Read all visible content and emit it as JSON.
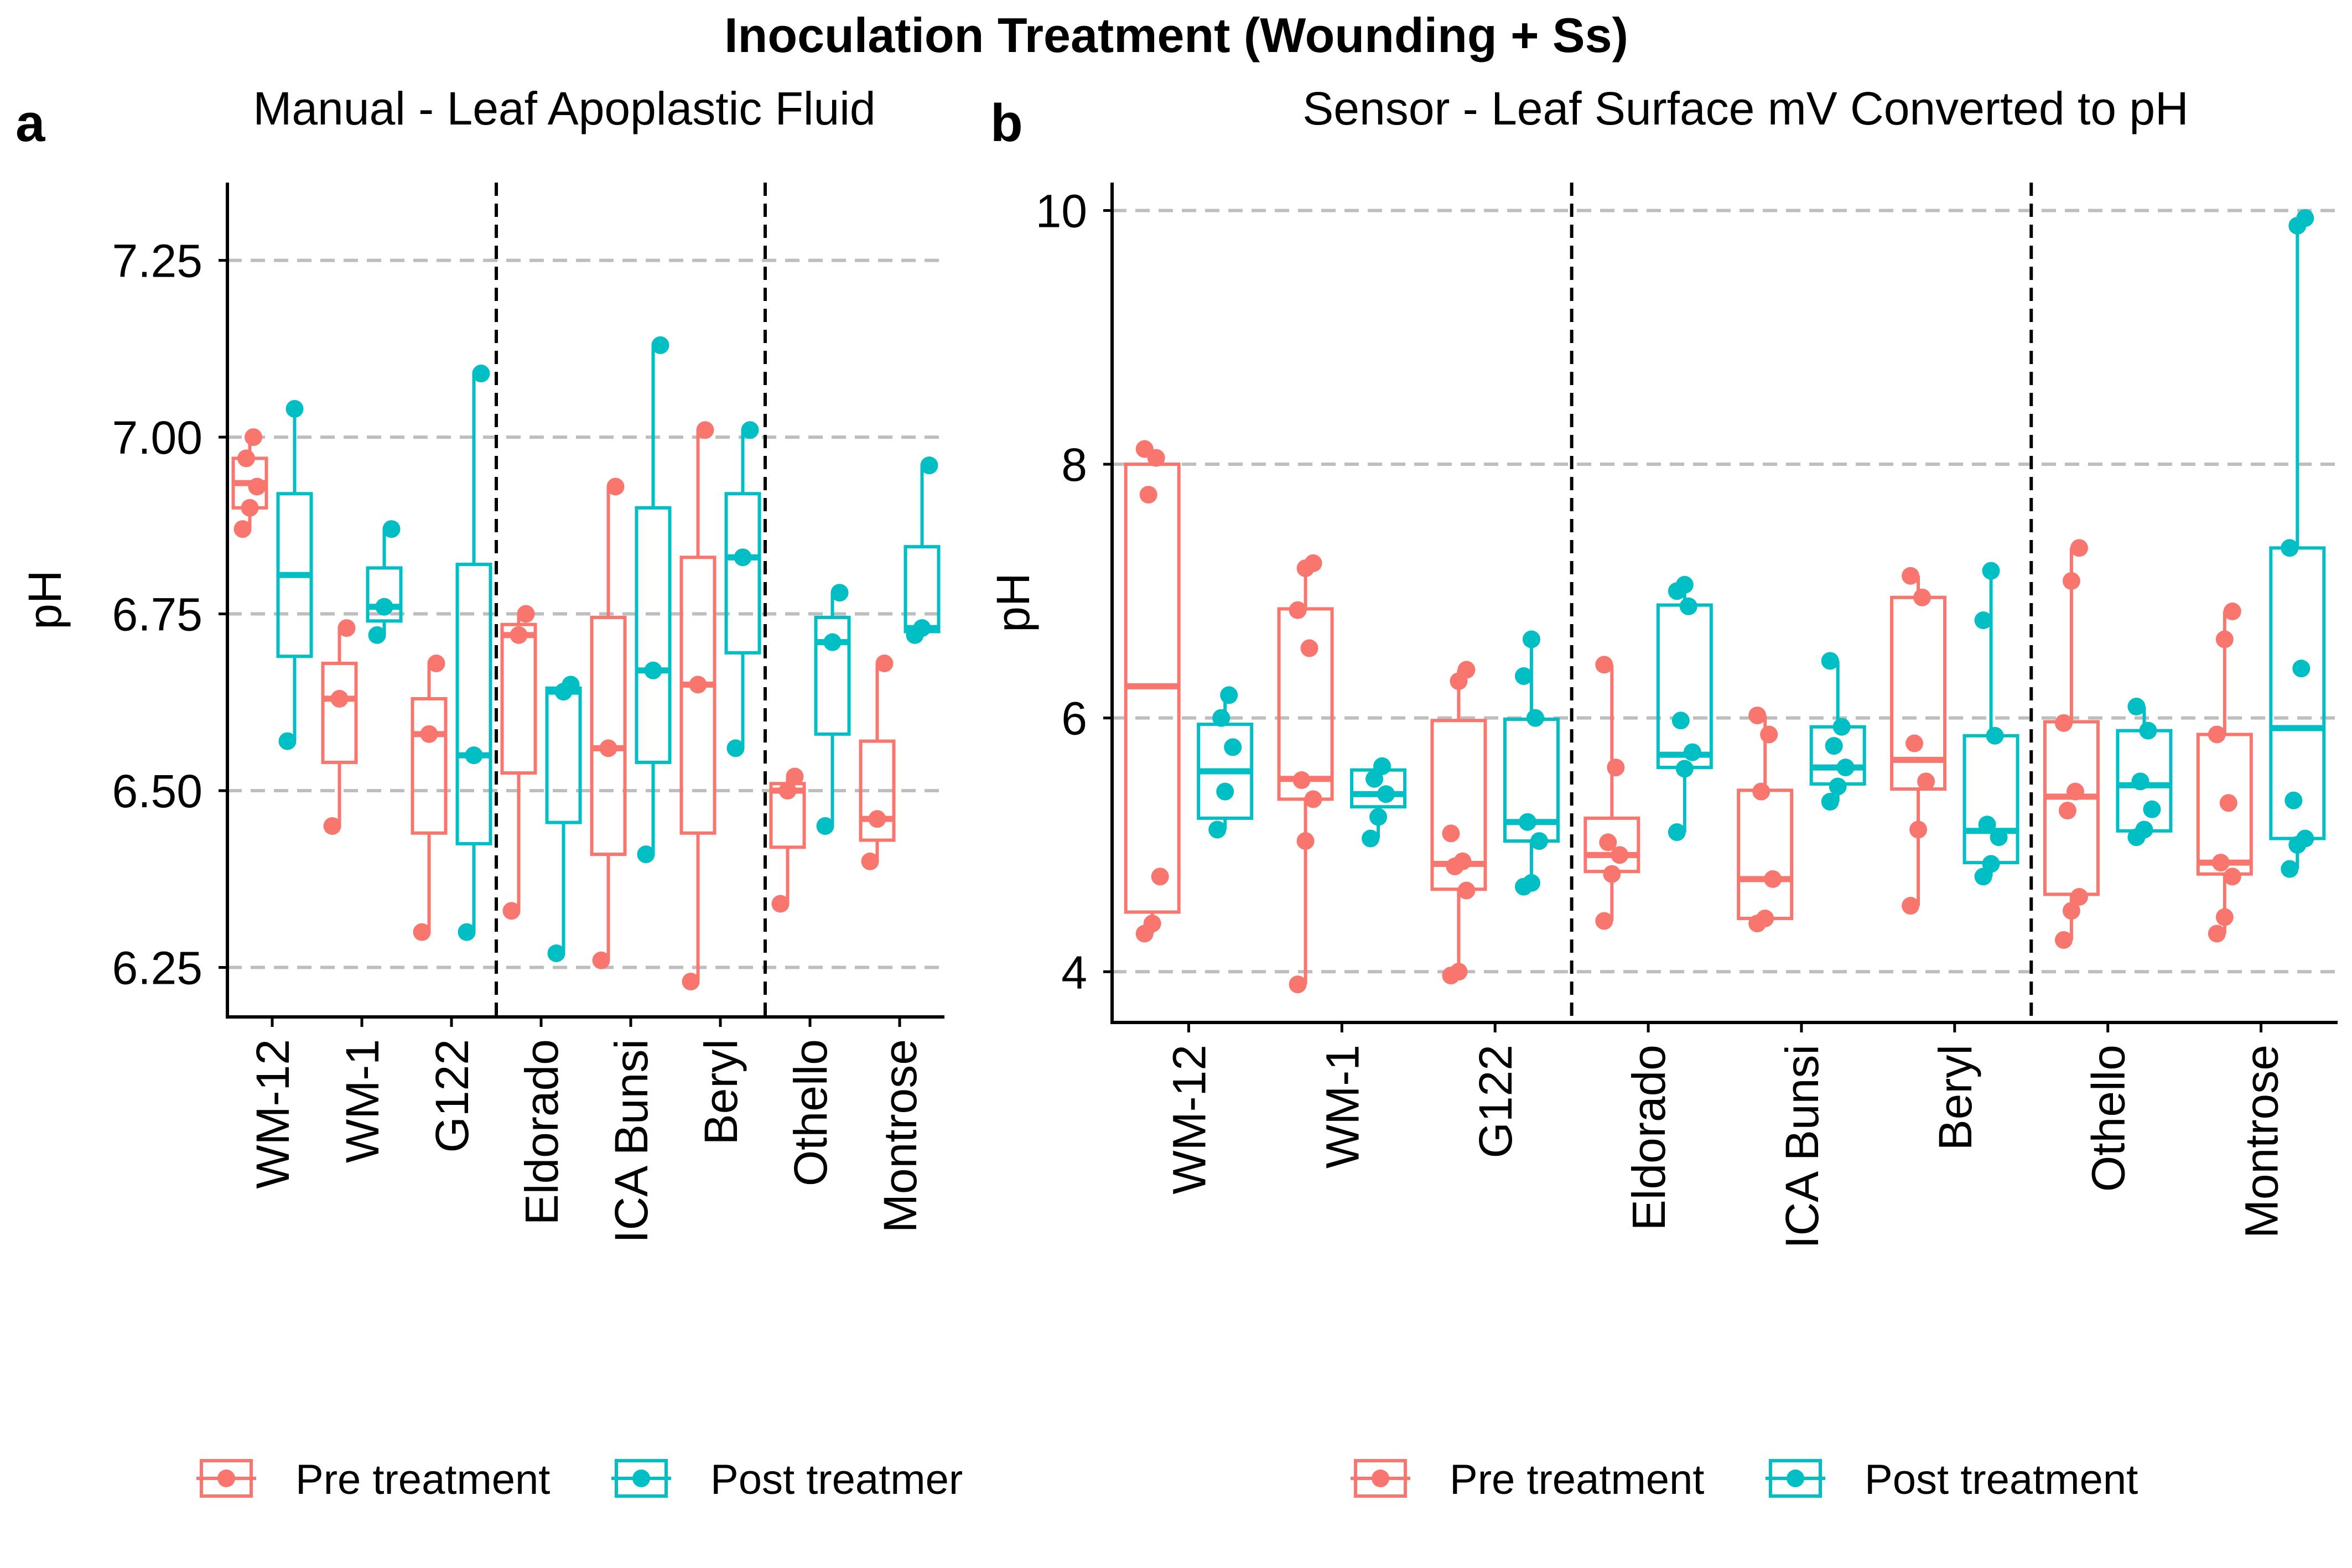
{
  "figure_title": "Inoculation Treatment (Wounding + Ss)",
  "colors": {
    "pre": "#F8766D",
    "post": "#00BFC4",
    "grid": "#BEBEBE",
    "axis": "#000000"
  },
  "chart_data": [
    {
      "type": "box",
      "panel_letter": "a",
      "title": "Manual - Leaf Apoplastic Fluid",
      "ylabel": "pH",
      "xlabel": "",
      "ylim": [
        6.18,
        7.36
      ],
      "yticks": [
        "6.25",
        "6.50",
        "6.75",
        "7.00",
        "7.25"
      ],
      "ytick_values": [
        6.25,
        6.5,
        6.75,
        7.0,
        7.25
      ],
      "grid": "horizontal dashed",
      "categories": [
        "WM-12",
        "WM-1",
        "G122",
        "Eldorado",
        "ICA Bunsi",
        "Beryl",
        "Othello",
        "Montrose"
      ],
      "group_separators_after": [
        3,
        6
      ],
      "legend": {
        "placement": "bottom",
        "entries": [
          "Pre treatment",
          "Post treatmer"
        ]
      },
      "series": [
        {
          "name": "Pre treatment",
          "boxes": [
            {
              "min": 6.87,
              "q1": 6.9,
              "median": 6.935,
              "q3": 6.97,
              "max": 7.0,
              "points": [
                6.87,
                6.9,
                6.93,
                6.97,
                7.0
              ]
            },
            {
              "min": 6.45,
              "q1": 6.54,
              "median": 6.63,
              "q3": 6.68,
              "max": 6.73,
              "points": [
                6.45,
                6.63,
                6.73
              ]
            },
            {
              "min": 6.3,
              "q1": 6.44,
              "median": 6.58,
              "q3": 6.63,
              "max": 6.68,
              "points": [
                6.3,
                6.58,
                6.68
              ]
            },
            {
              "min": 6.33,
              "q1": 6.525,
              "median": 6.72,
              "q3": 6.735,
              "max": 6.75,
              "points": [
                6.33,
                6.72,
                6.75
              ]
            },
            {
              "min": 6.26,
              "q1": 6.41,
              "median": 6.56,
              "q3": 6.745,
              "max": 6.93,
              "points": [
                6.26,
                6.56,
                6.93
              ]
            },
            {
              "min": 6.23,
              "q1": 6.44,
              "median": 6.65,
              "q3": 6.83,
              "max": 7.01,
              "points": [
                6.23,
                6.65,
                7.01
              ]
            },
            {
              "min": 6.34,
              "q1": 6.42,
              "median": 6.5,
              "q3": 6.51,
              "max": 6.52,
              "points": [
                6.34,
                6.5,
                6.52
              ]
            },
            {
              "min": 6.4,
              "q1": 6.43,
              "median": 6.46,
              "q3": 6.57,
              "max": 6.68,
              "points": [
                6.4,
                6.46,
                6.68
              ]
            }
          ]
        },
        {
          "name": "Post treatment",
          "boxes": [
            {
              "min": 6.57,
              "q1": 6.69,
              "median": 6.805,
              "q3": 6.92,
              "max": 7.04,
              "points": [
                6.57,
                7.04
              ]
            },
            {
              "min": 6.72,
              "q1": 6.74,
              "median": 6.76,
              "q3": 6.815,
              "max": 6.87,
              "points": [
                6.72,
                6.76,
                6.87
              ]
            },
            {
              "min": 6.3,
              "q1": 6.425,
              "median": 6.55,
              "q3": 6.82,
              "max": 7.09,
              "points": [
                6.3,
                6.55,
                7.09
              ]
            },
            {
              "min": 6.27,
              "q1": 6.455,
              "median": 6.64,
              "q3": 6.645,
              "max": 6.65,
              "points": [
                6.27,
                6.64,
                6.65
              ]
            },
            {
              "min": 6.41,
              "q1": 6.54,
              "median": 6.67,
              "q3": 6.9,
              "max": 7.13,
              "points": [
                6.41,
                6.67,
                7.13
              ]
            },
            {
              "min": 6.56,
              "q1": 6.695,
              "median": 6.83,
              "q3": 6.92,
              "max": 7.01,
              "points": [
                6.56,
                6.83,
                7.01
              ]
            },
            {
              "min": 6.45,
              "q1": 6.58,
              "median": 6.71,
              "q3": 6.745,
              "max": 6.78,
              "points": [
                6.45,
                6.71,
                6.78
              ]
            },
            {
              "min": 6.72,
              "q1": 6.725,
              "median": 6.73,
              "q3": 6.845,
              "max": 6.96,
              "points": [
                6.72,
                6.73,
                6.96
              ]
            }
          ]
        }
      ]
    },
    {
      "type": "box",
      "panel_letter": "b",
      "title": "Sensor - Leaf Surface mV Converted to pH",
      "ylabel": "pH",
      "xlabel": "",
      "ylim": [
        3.6,
        10.22
      ],
      "yticks": [
        "4",
        "6",
        "8",
        "10"
      ],
      "ytick_values": [
        4,
        6,
        8,
        10
      ],
      "grid": "horizontal dashed",
      "categories": [
        "WM-12",
        "WM-1",
        "G122",
        "Eldorado",
        "ICA Bunsi",
        "Beryl",
        "Othello",
        "Montrose"
      ],
      "group_separators_after": [
        3,
        6
      ],
      "legend": {
        "placement": "bottom",
        "entries": [
          "Pre treatment",
          "Post treatment"
        ]
      },
      "series": [
        {
          "name": "Pre treatment",
          "boxes": [
            {
              "min": 4.3,
              "q1": 4.47,
              "median": 6.25,
              "q3": 8.0,
              "max": 8.12,
              "points": [
                4.3,
                4.38,
                4.75,
                7.76,
                8.05,
                8.12
              ]
            },
            {
              "min": 3.9,
              "q1": 5.36,
              "median": 5.52,
              "q3": 6.86,
              "max": 7.22,
              "points": [
                3.9,
                5.03,
                5.36,
                5.51,
                6.55,
                6.85,
                7.18,
                7.22
              ]
            },
            {
              "min": 3.97,
              "q1": 4.65,
              "median": 4.85,
              "q3": 5.98,
              "max": 6.38,
              "points": [
                3.97,
                4.0,
                4.64,
                4.83,
                4.87,
                5.09,
                6.29,
                6.38
              ]
            },
            {
              "min": 4.4,
              "q1": 4.79,
              "median": 4.92,
              "q3": 5.21,
              "max": 6.42,
              "points": [
                4.4,
                4.77,
                4.92,
                5.02,
                5.61,
                6.42
              ]
            },
            {
              "min": 4.38,
              "q1": 4.42,
              "median": 4.73,
              "q3": 5.43,
              "max": 6.02,
              "points": [
                4.38,
                4.42,
                4.73,
                5.42,
                5.87,
                6.02
              ]
            },
            {
              "min": 4.52,
              "q1": 5.44,
              "median": 5.67,
              "q3": 6.95,
              "max": 7.12,
              "points": [
                4.52,
                5.12,
                5.5,
                5.8,
                6.95,
                7.12
              ]
            },
            {
              "min": 4.25,
              "q1": 4.61,
              "median": 5.38,
              "q3": 5.97,
              "max": 7.34,
              "points": [
                4.25,
                4.48,
                4.59,
                5.27,
                5.42,
                5.96,
                7.08,
                7.34
              ]
            },
            {
              "min": 4.3,
              "q1": 4.77,
              "median": 4.86,
              "q3": 5.87,
              "max": 6.84,
              "points": [
                4.3,
                4.43,
                4.75,
                4.86,
                5.33,
                5.87,
                6.62,
                6.84
              ]
            }
          ]
        },
        {
          "name": "Post treatment",
          "boxes": [
            {
              "min": 5.12,
              "q1": 5.21,
              "median": 5.58,
              "q3": 5.95,
              "max": 6.18,
              "points": [
                5.12,
                5.42,
                5.77,
                6.0,
                6.18
              ]
            },
            {
              "min": 5.05,
              "q1": 5.3,
              "median": 5.4,
              "q3": 5.59,
              "max": 5.62,
              "points": [
                5.05,
                5.22,
                5.4,
                5.52,
                5.62
              ]
            },
            {
              "min": 4.67,
              "q1": 5.03,
              "median": 5.18,
              "q3": 5.99,
              "max": 6.62,
              "points": [
                4.67,
                4.7,
                5.03,
                5.18,
                6.0,
                6.33,
                6.62
              ]
            },
            {
              "min": 5.1,
              "q1": 5.61,
              "median": 5.71,
              "q3": 6.89,
              "max": 7.05,
              "points": [
                5.1,
                5.6,
                5.73,
                5.98,
                6.88,
                7.0,
                7.05
              ]
            },
            {
              "min": 5.34,
              "q1": 5.48,
              "median": 5.61,
              "q3": 5.93,
              "max": 6.45,
              "points": [
                5.34,
                5.46,
                5.61,
                5.78,
                5.93,
                6.45
              ]
            },
            {
              "min": 4.75,
              "q1": 4.86,
              "median": 5.11,
              "q3": 5.86,
              "max": 7.16,
              "points": [
                4.75,
                4.85,
                5.06,
                5.16,
                5.86,
                6.77,
                7.16
              ]
            },
            {
              "min": 5.06,
              "q1": 5.11,
              "median": 5.47,
              "q3": 5.9,
              "max": 6.09,
              "points": [
                5.06,
                5.12,
                5.28,
                5.5,
                5.9,
                6.09
              ]
            },
            {
              "min": 4.81,
              "q1": 5.05,
              "median": 5.92,
              "q3": 7.34,
              "max": 9.94,
              "points": [
                4.81,
                5.0,
                5.05,
                5.35,
                6.39,
                7.34,
                9.88,
                9.94
              ]
            }
          ]
        }
      ]
    }
  ]
}
